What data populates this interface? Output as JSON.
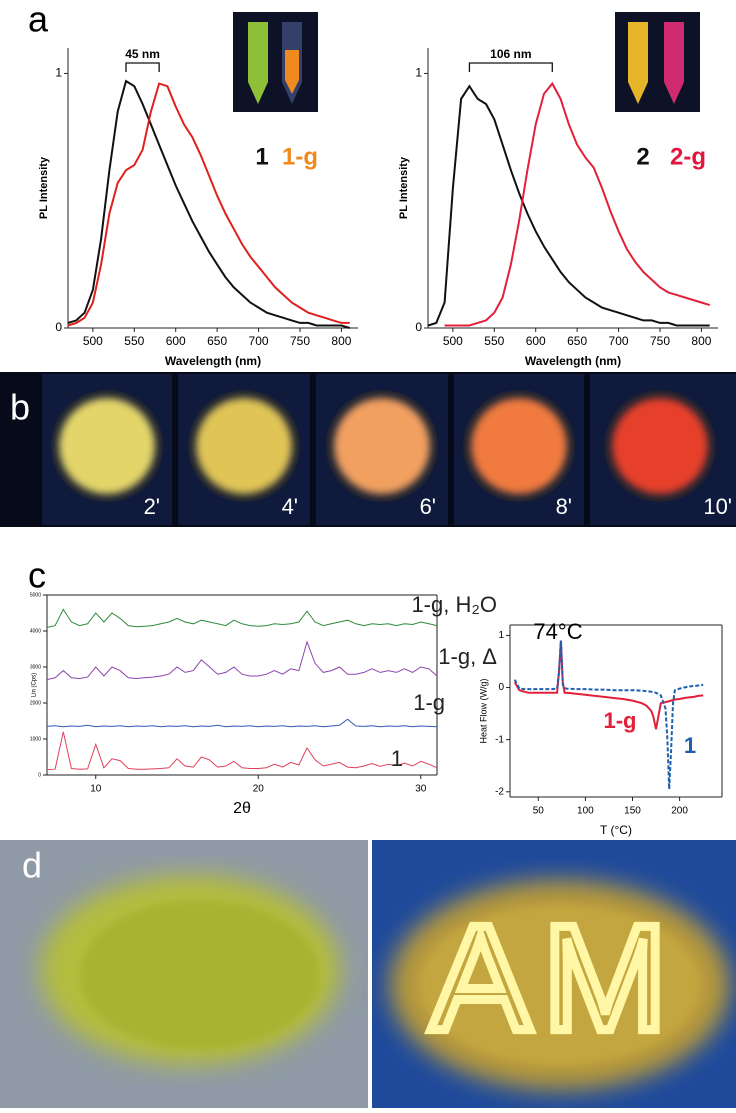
{
  "panel_labels": [
    "a",
    "b",
    "c",
    "d"
  ],
  "photos": {
    "b": [
      "2'",
      "4'",
      "6'",
      "8'",
      "10'"
    ],
    "d": "AM"
  },
  "chart_data": [
    {
      "type": "line",
      "x_label": "Wavelength (nm)",
      "y_label": "PL Intensity",
      "annotation": "45 nm",
      "x": [
        470,
        480,
        490,
        500,
        510,
        520,
        530,
        540,
        550,
        560,
        570,
        580,
        590,
        600,
        610,
        620,
        630,
        640,
        650,
        660,
        670,
        680,
        690,
        700,
        710,
        720,
        730,
        740,
        750,
        760,
        770,
        780,
        790,
        800,
        810
      ],
      "series": [
        {
          "name": "1",
          "color": "#111111",
          "label_color": "#111111",
          "values": [
            0.02,
            0.03,
            0.06,
            0.15,
            0.35,
            0.62,
            0.85,
            0.97,
            0.95,
            0.88,
            0.8,
            0.72,
            0.64,
            0.56,
            0.49,
            0.42,
            0.36,
            0.3,
            0.25,
            0.2,
            0.16,
            0.13,
            0.1,
            0.08,
            0.06,
            0.05,
            0.04,
            0.03,
            0.02,
            0.02,
            0.01,
            0.01,
            0.01,
            0.01,
            0.0
          ]
        },
        {
          "name": "1-g",
          "color": "#e0201e",
          "label_color": "#ef8a1e",
          "values": [
            0.01,
            0.02,
            0.04,
            0.1,
            0.25,
            0.45,
            0.57,
            0.62,
            0.64,
            0.7,
            0.85,
            0.96,
            0.95,
            0.87,
            0.8,
            0.75,
            0.68,
            0.6,
            0.52,
            0.45,
            0.39,
            0.33,
            0.28,
            0.24,
            0.2,
            0.16,
            0.13,
            0.1,
            0.08,
            0.06,
            0.05,
            0.04,
            0.03,
            0.02,
            0.02
          ]
        }
      ],
      "xlim": [
        470,
        820
      ],
      "ylim": [
        0,
        1.1
      ],
      "xticks": [
        500,
        550,
        600,
        650,
        700,
        750,
        800
      ],
      "yticks": [
        0,
        1
      ]
    },
    {
      "type": "line",
      "x_label": "Wavelength (nm)",
      "y_label": "PL Intensity",
      "annotation": "106 nm",
      "x": [
        470,
        480,
        490,
        500,
        510,
        520,
        530,
        540,
        550,
        560,
        570,
        580,
        590,
        600,
        610,
        620,
        630,
        640,
        650,
        660,
        670,
        680,
        690,
        700,
        710,
        720,
        730,
        740,
        750,
        760,
        770,
        780,
        790,
        800,
        810
      ],
      "series": [
        {
          "name": "2",
          "color": "#111111",
          "label_color": "#111111",
          "values": [
            0.01,
            0.02,
            0.1,
            0.55,
            0.9,
            0.95,
            0.9,
            0.88,
            0.82,
            0.72,
            0.62,
            0.53,
            0.45,
            0.38,
            0.32,
            0.27,
            0.22,
            0.18,
            0.15,
            0.12,
            0.1,
            0.08,
            0.07,
            0.06,
            0.05,
            0.04,
            0.03,
            0.03,
            0.02,
            0.02,
            0.01,
            0.01,
            0.01,
            0.01,
            0.01
          ]
        },
        {
          "name": "2-g",
          "color": "#e3203a",
          "label_color": "#e2153c",
          "values": [
            null,
            null,
            0.01,
            0.01,
            0.01,
            0.01,
            0.02,
            0.03,
            0.06,
            0.12,
            0.25,
            0.42,
            0.62,
            0.8,
            0.92,
            0.96,
            0.9,
            0.8,
            0.72,
            0.67,
            0.63,
            0.55,
            0.46,
            0.38,
            0.31,
            0.26,
            0.22,
            0.19,
            0.16,
            0.14,
            0.13,
            0.12,
            0.11,
            0.1,
            0.09
          ]
        }
      ],
      "xlim": [
        470,
        820
      ],
      "ylim": [
        0,
        1.1
      ],
      "xticks": [
        500,
        550,
        600,
        650,
        700,
        750,
        800
      ],
      "yticks": [
        0,
        1
      ]
    },
    {
      "type": "line",
      "x_label": "2θ",
      "y_label": "Lin (Cps)",
      "x": [
        7,
        7.5,
        8,
        8.5,
        9,
        9.5,
        10,
        10.5,
        11,
        11.5,
        12,
        12.5,
        13,
        13.5,
        14,
        14.5,
        15,
        15.5,
        16,
        16.5,
        17,
        17.5,
        18,
        18.5,
        19,
        19.5,
        20,
        20.5,
        21,
        21.5,
        22,
        22.5,
        23,
        23.5,
        24,
        24.5,
        25,
        25.5,
        26,
        26.5,
        27,
        27.5,
        28,
        28.5,
        29,
        29.5,
        30,
        30.5,
        31
      ],
      "series": [
        {
          "name": "1-g, H₂O",
          "color": "#2e8b3e",
          "label_color": "#222222",
          "values": [
            4100,
            4150,
            4600,
            4250,
            4150,
            4200,
            4500,
            4250,
            4500,
            4350,
            4150,
            4120,
            4130,
            4150,
            4200,
            4250,
            4350,
            4250,
            4200,
            4300,
            4250,
            4200,
            4150,
            4300,
            4200,
            4150,
            4130,
            4150,
            4200,
            4180,
            4200,
            4250,
            4550,
            4250,
            4150,
            4200,
            4250,
            4300,
            4200,
            4150,
            4200,
            4180,
            4200,
            4150,
            4200,
            4180,
            4250,
            4200,
            4150
          ]
        },
        {
          "name": "1-g, Δ",
          "color": "#8e44ad",
          "label_color": "#222222",
          "values": [
            2650,
            2700,
            2900,
            2700,
            2680,
            2720,
            3000,
            2750,
            3000,
            2900,
            2700,
            2680,
            2700,
            2720,
            2750,
            2800,
            3000,
            2850,
            2900,
            3200,
            3000,
            2800,
            2850,
            3000,
            2800,
            2750,
            2750,
            2800,
            2900,
            2800,
            2950,
            2900,
            3700,
            3100,
            2850,
            2900,
            3000,
            2800,
            2800,
            2850,
            2950,
            2850,
            2900,
            2850,
            2950,
            2850,
            3000,
            2950,
            2750
          ]
        },
        {
          "name": "1-g",
          "color": "#2a5db0",
          "label_color": "#222222",
          "values": [
            1350,
            1370,
            1340,
            1360,
            1350,
            1380,
            1340,
            1360,
            1350,
            1370,
            1340,
            1360,
            1350,
            1370,
            1340,
            1360,
            1350,
            1370,
            1340,
            1360,
            1350,
            1380,
            1340,
            1360,
            1350,
            1370,
            1340,
            1360,
            1350,
            1370,
            1340,
            1360,
            1350,
            1370,
            1340,
            1360,
            1380,
            1550,
            1360,
            1350,
            1370,
            1340,
            1360,
            1350,
            1370,
            1340,
            1360,
            1350,
            1340
          ]
        },
        {
          "name": "1",
          "color": "#e0405a",
          "label_color": "#222222",
          "values": [
            150,
            160,
            1200,
            180,
            160,
            170,
            850,
            200,
            450,
            400,
            180,
            160,
            160,
            170,
            180,
            200,
            450,
            250,
            220,
            500,
            420,
            220,
            250,
            380,
            200,
            180,
            180,
            200,
            300,
            220,
            350,
            280,
            750,
            420,
            250,
            300,
            350,
            220,
            200,
            250,
            320,
            240,
            300,
            260,
            330,
            250,
            380,
            300,
            200
          ]
        }
      ],
      "xlim": [
        7,
        31
      ],
      "ylim": [
        0,
        5000
      ],
      "xticks": [
        10,
        20,
        30
      ],
      "yticks": [
        0,
        1000,
        2000,
        3000,
        4000,
        5000
      ]
    },
    {
      "type": "line",
      "title": "74°C",
      "x_label": "T (°C)",
      "y_label": "Heat Flow (W/g)",
      "x": [
        25,
        30,
        35,
        40,
        45,
        50,
        55,
        60,
        65,
        70,
        72,
        74,
        76,
        78,
        80,
        90,
        100,
        110,
        120,
        130,
        140,
        150,
        160,
        165,
        170,
        172,
        175,
        178,
        180,
        185,
        187,
        189,
        191,
        193,
        195,
        200,
        205,
        210,
        215,
        220,
        225
      ],
      "series": [
        {
          "name": "1-g",
          "color": "#e3203a",
          "label_color": "#e3203a",
          "line_style": "solid",
          "values": [
            0.1,
            -0.05,
            -0.08,
            -0.1,
            -0.1,
            -0.1,
            -0.1,
            -0.1,
            -0.1,
            -0.1,
            0.3,
            0.9,
            0.1,
            -0.1,
            -0.1,
            -0.12,
            -0.14,
            -0.16,
            -0.18,
            -0.2,
            -0.22,
            -0.25,
            -0.3,
            -0.35,
            -0.45,
            -0.55,
            -0.8,
            -0.5,
            -0.3,
            -0.28,
            -0.27,
            -0.26,
            -0.25,
            -0.24,
            -0.23,
            -0.22,
            -0.2,
            -0.19,
            -0.18,
            -0.16,
            -0.15
          ]
        },
        {
          "name": "1",
          "color": "#1f5fb0",
          "label_color": "#1f5fb0",
          "line_style": "dashed",
          "values": [
            0.15,
            -0.02,
            -0.03,
            -0.03,
            -0.03,
            -0.03,
            -0.03,
            -0.03,
            -0.03,
            -0.02,
            0.3,
            0.9,
            0.05,
            -0.01,
            -0.02,
            -0.03,
            -0.03,
            -0.04,
            -0.04,
            -0.05,
            -0.05,
            -0.05,
            -0.06,
            -0.07,
            -0.08,
            -0.09,
            -0.1,
            -0.13,
            -0.15,
            -0.4,
            -1,
            -1.95,
            -1.2,
            -0.3,
            -0.05,
            -0.02,
            0,
            0.02,
            0.03,
            0.04,
            0.05
          ]
        }
      ],
      "xlim": [
        20,
        245
      ],
      "ylim": [
        -2.1,
        1.2
      ],
      "xticks": [
        50,
        100,
        150,
        200
      ],
      "yticks": [
        -2,
        -1,
        0,
        1
      ]
    }
  ]
}
